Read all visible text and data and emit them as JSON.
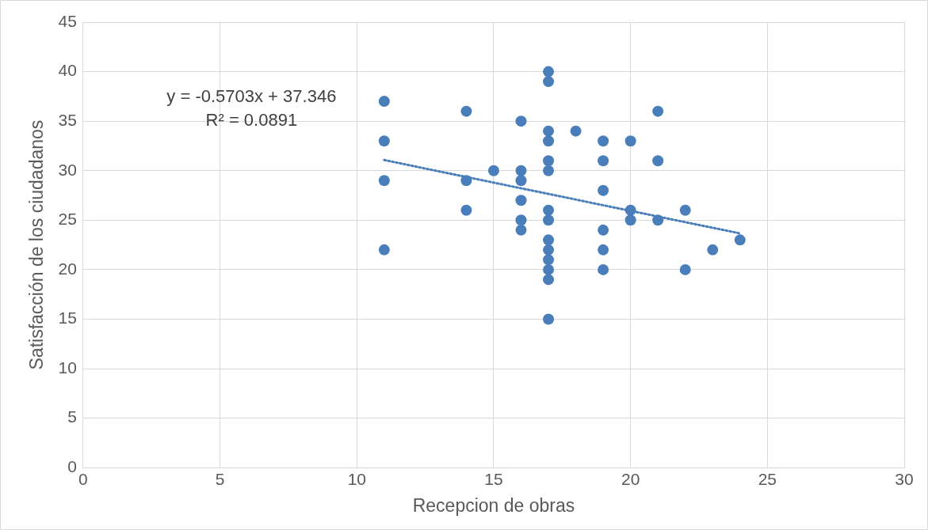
{
  "chart_data": {
    "type": "scatter",
    "xlabel": "Recepcion de obras",
    "ylabel": "Satisfacción de los ciudadanos",
    "annotations": [
      "y = -0.5703x + 37.346",
      "R² = 0.0891"
    ],
    "series": [
      {
        "type": "scatter",
        "color": "#4a7ebb",
        "marker": "circle",
        "x": [
          11,
          11,
          11,
          11,
          14,
          14,
          14,
          15,
          16,
          16,
          16,
          16,
          16,
          16,
          17,
          17,
          17,
          17,
          17,
          17,
          17,
          17,
          17,
          17,
          17,
          17,
          17,
          17,
          18,
          19,
          19,
          19,
          19,
          19,
          19,
          20,
          20,
          20,
          21,
          21,
          21,
          22,
          22,
          23,
          24
        ],
        "values": [
          37,
          33,
          29,
          22,
          36,
          29,
          26,
          30,
          35,
          30,
          29,
          27,
          25,
          24,
          40,
          39,
          34,
          33,
          31,
          30,
          26,
          25,
          23,
          22,
          21,
          20,
          19,
          15,
          34,
          33,
          31,
          28,
          24,
          22,
          20,
          33,
          26,
          25,
          36,
          31,
          25,
          26,
          20,
          22,
          23
        ]
      },
      {
        "type": "line",
        "color": "#4a7ebb",
        "line_style": "dotted",
        "marker": "none",
        "x": [
          11,
          24
        ],
        "values": [
          31.07,
          23.66
        ]
      }
    ],
    "xlim": [
      0,
      30
    ],
    "xticks": [
      0,
      5,
      10,
      15,
      20,
      25,
      30
    ],
    "ylim": [
      0,
      45
    ],
    "yticks": [
      0,
      5,
      10,
      15,
      20,
      25,
      30,
      35,
      40,
      45
    ],
    "grid": true,
    "legend": false
  }
}
